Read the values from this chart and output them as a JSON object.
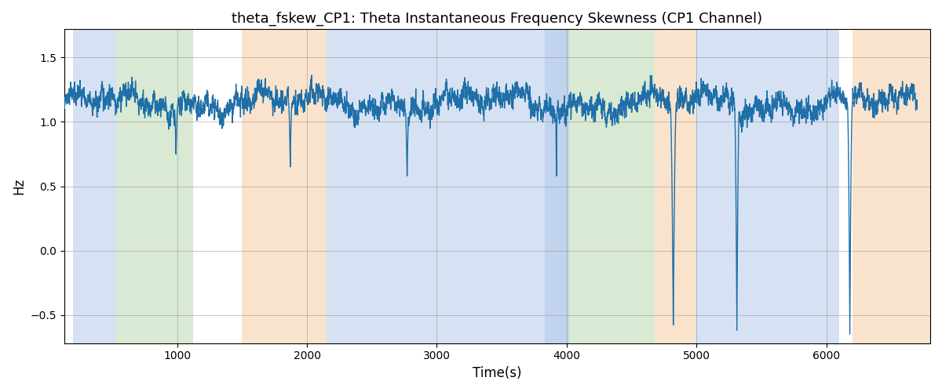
{
  "title": "theta_fskew_CP1: Theta Instantaneous Frequency Skewness (CP1 Channel)",
  "xlabel": "Time(s)",
  "ylabel": "Hz",
  "line_color": "#1f6fa8",
  "line_width": 1.0,
  "background_color": "#ffffff",
  "xlim": [
    130,
    6800
  ],
  "ylim": [
    -0.72,
    1.72
  ],
  "yticks": [
    -0.5,
    0.0,
    0.5,
    1.0,
    1.5
  ],
  "xticks": [
    1000,
    2000,
    3000,
    4000,
    5000,
    6000
  ],
  "seed": 42,
  "n_points": 6700,
  "color_bands": [
    {
      "xmin": 200,
      "xmax": 530,
      "color": "#aec6e8",
      "alpha": 0.5
    },
    {
      "xmin": 530,
      "xmax": 1120,
      "color": "#b5d4a8",
      "alpha": 0.5
    },
    {
      "xmin": 1500,
      "xmax": 2150,
      "color": "#f5c89a",
      "alpha": 0.5
    },
    {
      "xmin": 2150,
      "xmax": 3830,
      "color": "#aec6e8",
      "alpha": 0.5
    },
    {
      "xmin": 3830,
      "xmax": 4020,
      "color": "#aec6e8",
      "alpha": 0.75
    },
    {
      "xmin": 4020,
      "xmax": 4680,
      "color": "#b5d4a8",
      "alpha": 0.5
    },
    {
      "xmin": 4680,
      "xmax": 4990,
      "color": "#f5c89a",
      "alpha": 0.5
    },
    {
      "xmin": 4990,
      "xmax": 6100,
      "color": "#aec6e8",
      "alpha": 0.5
    },
    {
      "xmin": 6200,
      "xmax": 6800,
      "color": "#f5c89a",
      "alpha": 0.5
    }
  ],
  "signal_base": 1.15,
  "signal_noise_std": 0.07,
  "smooth_window": 3
}
